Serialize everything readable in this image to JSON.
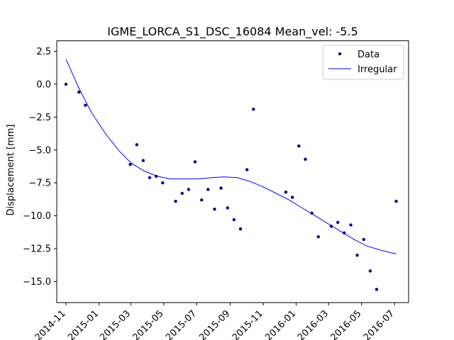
{
  "chart_data": {
    "type": "scatter",
    "title": "IGME_LORCA_S1_DSC_16084    Mean_vel: -5.5",
    "xlabel": "",
    "ylabel": "Displacement [mm]",
    "x_range": [
      "2014-10-15",
      "2016-07-27"
    ],
    "ylim": [
      -16.6,
      3.3
    ],
    "x_ticks": [
      "2014-11",
      "2015-01",
      "2015-03",
      "2015-05",
      "2015-07",
      "2015-09",
      "2015-11",
      "2016-01",
      "2016-03",
      "2016-05",
      "2016-07"
    ],
    "y_ticks": [
      2.5,
      0.0,
      -2.5,
      -5.0,
      -7.5,
      -10.0,
      -12.5,
      -15.0
    ],
    "y_tick_labels": [
      "2.5",
      "0.0",
      "−2.5",
      "−5.0",
      "−7.5",
      "−10.0",
      "−12.5",
      "−15.0"
    ],
    "grid": false,
    "legend": "top-right",
    "series": [
      {
        "name": "Data",
        "kind": "scatter",
        "color": "#00007f",
        "points": [
          {
            "x": "2014-11-01",
            "y": 0.0
          },
          {
            "x": "2014-11-25",
            "y": -0.6
          },
          {
            "x": "2014-12-07",
            "y": -1.6
          },
          {
            "x": "2015-02-28",
            "y": -6.1
          },
          {
            "x": "2015-03-12",
            "y": -4.6
          },
          {
            "x": "2015-03-24",
            "y": -5.8
          },
          {
            "x": "2015-04-05",
            "y": -7.1
          },
          {
            "x": "2015-04-17",
            "y": -7.0
          },
          {
            "x": "2015-04-29",
            "y": -7.5
          },
          {
            "x": "2015-05-23",
            "y": -8.9
          },
          {
            "x": "2015-06-04",
            "y": -8.3
          },
          {
            "x": "2015-06-16",
            "y": -8.0
          },
          {
            "x": "2015-06-28",
            "y": -5.9
          },
          {
            "x": "2015-07-10",
            "y": -8.8
          },
          {
            "x": "2015-07-22",
            "y": -8.0
          },
          {
            "x": "2015-08-03",
            "y": -9.5
          },
          {
            "x": "2015-08-15",
            "y": -7.9
          },
          {
            "x": "2015-08-27",
            "y": -9.4
          },
          {
            "x": "2015-09-08",
            "y": -10.3
          },
          {
            "x": "2015-09-20",
            "y": -11.0
          },
          {
            "x": "2015-10-02",
            "y": -6.5
          },
          {
            "x": "2015-10-14",
            "y": -1.9
          },
          {
            "x": "2015-12-13",
            "y": -8.2
          },
          {
            "x": "2015-12-25",
            "y": -8.6
          },
          {
            "x": "2016-01-06",
            "y": -4.7
          },
          {
            "x": "2016-01-18",
            "y": -5.7
          },
          {
            "x": "2016-01-30",
            "y": -9.8
          },
          {
            "x": "2016-02-11",
            "y": -11.6
          },
          {
            "x": "2016-03-06",
            "y": -10.8
          },
          {
            "x": "2016-03-18",
            "y": -10.5
          },
          {
            "x": "2016-03-30",
            "y": -11.3
          },
          {
            "x": "2016-04-11",
            "y": -10.7
          },
          {
            "x": "2016-04-23",
            "y": -13.0
          },
          {
            "x": "2016-05-05",
            "y": -11.8
          },
          {
            "x": "2016-05-17",
            "y": -14.2
          },
          {
            "x": "2016-05-29",
            "y": -15.6
          },
          {
            "x": "2016-07-04",
            "y": -8.9
          }
        ]
      },
      {
        "name": "Irregular",
        "kind": "line",
        "color": "#0000ff",
        "points": [
          {
            "x": "2014-11-01",
            "y": 1.9
          },
          {
            "x": "2014-11-25",
            "y": -0.3
          },
          {
            "x": "2014-12-19",
            "y": -2.2
          },
          {
            "x": "2015-01-14",
            "y": -3.8
          },
          {
            "x": "2015-02-08",
            "y": -5.1
          },
          {
            "x": "2015-03-02",
            "y": -6.0
          },
          {
            "x": "2015-03-26",
            "y": -6.6
          },
          {
            "x": "2015-04-19",
            "y": -7.0
          },
          {
            "x": "2015-05-13",
            "y": -7.2
          },
          {
            "x": "2015-06-06",
            "y": -7.2
          },
          {
            "x": "2015-07-04",
            "y": -7.2
          },
          {
            "x": "2015-07-28",
            "y": -7.1
          },
          {
            "x": "2015-08-21",
            "y": -7.05
          },
          {
            "x": "2015-09-14",
            "y": -7.1
          },
          {
            "x": "2015-10-08",
            "y": -7.4
          },
          {
            "x": "2015-11-01",
            "y": -7.8
          },
          {
            "x": "2015-11-25",
            "y": -8.3
          },
          {
            "x": "2015-12-19",
            "y": -8.8
          },
          {
            "x": "2016-01-12",
            "y": -9.4
          },
          {
            "x": "2016-02-05",
            "y": -10.0
          },
          {
            "x": "2016-02-29",
            "y": -10.6
          },
          {
            "x": "2016-03-24",
            "y": -11.2
          },
          {
            "x": "2016-04-17",
            "y": -11.8
          },
          {
            "x": "2016-05-11",
            "y": -12.3
          },
          {
            "x": "2016-06-04",
            "y": -12.6
          },
          {
            "x": "2016-07-04",
            "y": -12.9
          }
        ]
      }
    ]
  }
}
